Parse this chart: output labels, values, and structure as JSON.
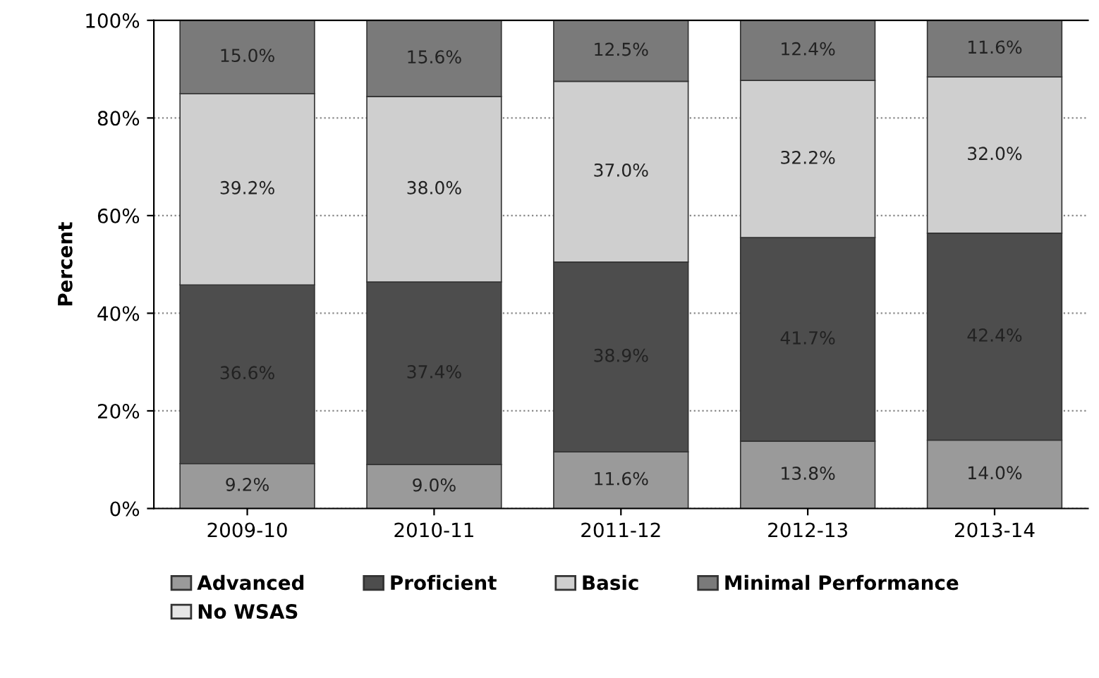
{
  "chart_data": {
    "type": "bar",
    "stacked": true,
    "ylabel": "Percent",
    "categories": [
      "2009-10",
      "2010-11",
      "2011-12",
      "2012-13",
      "2013-14"
    ],
    "series": [
      {
        "name": "Advanced",
        "color": "#9a9a9a",
        "values": [
          9.2,
          9.0,
          11.6,
          13.8,
          14.0
        ],
        "value_labels": [
          "9.2%",
          "9.0%",
          "11.6%",
          "13.8%",
          "14.0%"
        ]
      },
      {
        "name": "Proficient",
        "color": "#4d4d4d",
        "values": [
          36.6,
          37.4,
          38.9,
          41.7,
          42.4
        ],
        "value_labels": [
          "36.6%",
          "37.4%",
          "38.9%",
          "41.7%",
          "42.4%"
        ]
      },
      {
        "name": "Basic",
        "color": "#cfcfcf",
        "values": [
          39.2,
          38.0,
          37.0,
          32.2,
          32.0
        ],
        "value_labels": [
          "39.2%",
          "38.0%",
          "37.0%",
          "32.2%",
          "32.0%"
        ]
      },
      {
        "name": "Minimal Performance",
        "color": "#7a7a7a",
        "values": [
          15.0,
          15.6,
          12.5,
          12.4,
          11.6
        ],
        "value_labels": [
          "15.0%",
          "15.6%",
          "12.5%",
          "12.4%",
          "11.6%"
        ]
      },
      {
        "name": "No WSAS",
        "color": "#e6e6e6",
        "values": [
          null,
          null,
          null,
          null,
          null
        ]
      }
    ],
    "ylim": [
      0,
      100
    ],
    "yticks": [
      {
        "value": 0,
        "label": "0%"
      },
      {
        "value": 20,
        "label": "20%"
      },
      {
        "value": 40,
        "label": "40%"
      },
      {
        "value": 60,
        "label": "60%"
      },
      {
        "value": 80,
        "label": "80%"
      },
      {
        "value": 100,
        "label": "100%"
      }
    ],
    "grid": "y",
    "legend": "bottom"
  }
}
